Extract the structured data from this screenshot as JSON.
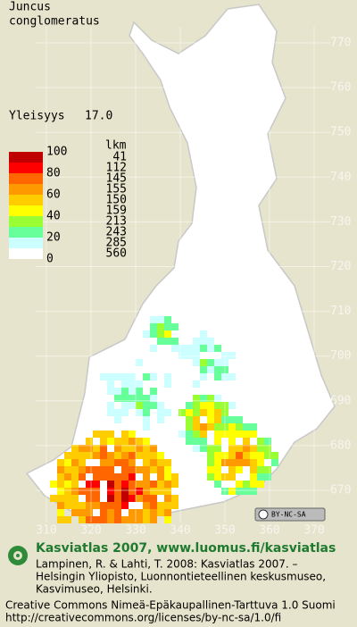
{
  "title": [
    "Juncus",
    "conglomeratus"
  ],
  "frequency": {
    "label": "Yleisyys",
    "value": "17.0"
  },
  "legend": {
    "scale_labels": [
      "100",
      "80",
      "60",
      "40",
      "20",
      "0"
    ],
    "count_header": "lkm",
    "counts": [
      "41",
      "112",
      "145",
      "155",
      "150",
      "159",
      "213",
      "243",
      "285",
      "560"
    ],
    "colors": [
      "#c00000",
      "#ff0000",
      "#ff6600",
      "#ff9900",
      "#ffcc00",
      "#ffff00",
      "#99ff33",
      "#66ff99",
      "#ccffff",
      "#ffffff"
    ]
  },
  "grid": {
    "north": [
      "770",
      "760",
      "750",
      "740",
      "730",
      "720",
      "710",
      "700",
      "690",
      "680",
      "670"
    ],
    "east": [
      "310",
      "320",
      "330",
      "340",
      "350",
      "360",
      "370"
    ]
  },
  "license_badge": "BY-NC-SA",
  "footer": {
    "heading": "Kasviatlas 2007, www.luomus.fi/kasviatlas",
    "citation": [
      "Lampinen, R. & Lahti, T. 2008: Kasviatlas 2007. –",
      "Helsingin Yliopisto, Luonnontieteellinen keskusmuseo,",
      "Kasvimuseo, Helsinki."
    ],
    "license": [
      "Creative Commons Nimeä-Epäkaupallinen-Tarttuva 1.0 Suomi",
      "http://creativecommons.org/licenses/by-nc-sa/1.0/fi"
    ]
  }
}
